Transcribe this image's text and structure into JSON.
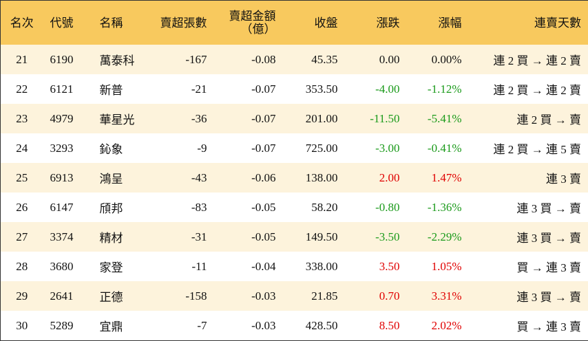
{
  "table": {
    "columns": [
      "名次",
      "代號",
      "名稱",
      "賣超張數",
      "賣超金額\n（億）",
      "收盤",
      "漲跌",
      "漲幅",
      "連賣天數"
    ],
    "rows": [
      [
        "21",
        "6190",
        "萬泰科",
        "-167",
        "-0.08",
        "45.35",
        "0.00",
        "0.00%",
        "連 2 買 → 連 2 賣"
      ],
      [
        "22",
        "6121",
        "新普",
        "-21",
        "-0.07",
        "353.50",
        "-4.00",
        "-1.12%",
        "連 2 買 → 連 2 賣"
      ],
      [
        "23",
        "4979",
        "華星光",
        "-36",
        "-0.07",
        "201.00",
        "-11.50",
        "-5.41%",
        "連 2 買 → 賣"
      ],
      [
        "24",
        "3293",
        "鈊象",
        "-9",
        "-0.07",
        "725.00",
        "-3.00",
        "-0.41%",
        "連 2 買 → 連 5 賣"
      ],
      [
        "25",
        "6913",
        "鴻呈",
        "-43",
        "-0.06",
        "138.00",
        "2.00",
        "1.47%",
        "連 3 賣"
      ],
      [
        "26",
        "6147",
        "頎邦",
        "-83",
        "-0.05",
        "58.20",
        "-0.80",
        "-1.36%",
        "連 3 買 → 賣"
      ],
      [
        "27",
        "3374",
        "精材",
        "-31",
        "-0.05",
        "149.50",
        "-3.50",
        "-2.29%",
        "連 3 買 → 賣"
      ],
      [
        "28",
        "3680",
        "家登",
        "-11",
        "-0.04",
        "338.00",
        "3.50",
        "1.05%",
        "買 → 連 3 賣"
      ],
      [
        "29",
        "2641",
        "正德",
        "-158",
        "-0.03",
        "21.85",
        "0.70",
        "3.31%",
        "連 3 買 → 賣"
      ],
      [
        "30",
        "5289",
        "宜鼎",
        "-7",
        "-0.03",
        "428.50",
        "8.50",
        "2.02%",
        "買 → 連 3 賣"
      ]
    ]
  }
}
